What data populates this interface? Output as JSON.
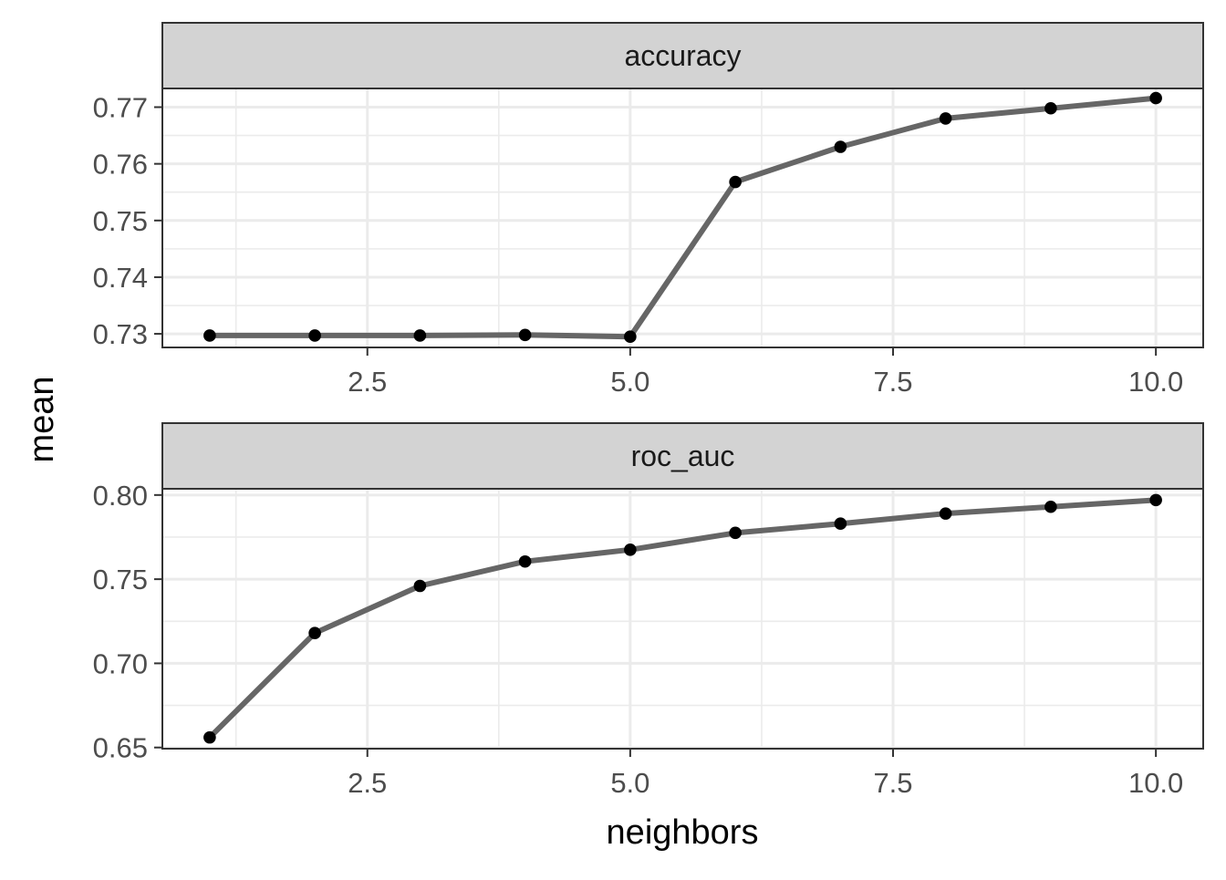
{
  "chart_data": {
    "type": "line",
    "xlabel": "neighbors",
    "ylabel": "mean",
    "colors": {
      "line": "#666666",
      "point": "#000000",
      "strip_fill": "#d3d3d3",
      "grid": "#ebebeb",
      "border": "#333333"
    },
    "panels": [
      {
        "strip_label": "accuracy",
        "x": [
          1,
          2,
          3,
          4,
          5,
          6,
          7,
          8,
          9,
          10
        ],
        "values": [
          0.7297,
          0.7297,
          0.7297,
          0.7298,
          0.7295,
          0.7568,
          0.763,
          0.768,
          0.7698,
          0.7716
        ],
        "xlim": [
          0.55,
          10.45
        ],
        "ylim": [
          0.7276,
          0.7733
        ],
        "xticks": [
          2.5,
          5.0,
          7.5,
          10.0
        ],
        "xtick_labels": [
          "2.5",
          "5.0",
          "7.5",
          "10.0"
        ],
        "yticks": [
          0.73,
          0.74,
          0.75,
          0.76,
          0.77
        ],
        "ytick_labels": [
          "0.73",
          "0.74",
          "0.75",
          "0.76",
          "0.77"
        ],
        "yminor": [
          0.735,
          0.745,
          0.755,
          0.765
        ]
      },
      {
        "strip_label": "roc_auc",
        "x": [
          1,
          2,
          3,
          4,
          5,
          6,
          7,
          8,
          9,
          10
        ],
        "values": [
          0.656,
          0.718,
          0.746,
          0.7605,
          0.7675,
          0.7775,
          0.783,
          0.789,
          0.793,
          0.797
        ],
        "xlim": [
          0.55,
          10.45
        ],
        "ylim": [
          0.6493,
          0.8037
        ],
        "xticks": [
          2.5,
          5.0,
          7.5,
          10.0
        ],
        "xtick_labels": [
          "2.5",
          "5.0",
          "7.5",
          "10.0"
        ],
        "yticks": [
          0.65,
          0.7,
          0.75,
          0.8
        ],
        "ytick_labels": [
          "0.65",
          "0.70",
          "0.75",
          "0.80"
        ],
        "yminor": [
          0.675,
          0.725,
          0.775
        ]
      }
    ]
  }
}
